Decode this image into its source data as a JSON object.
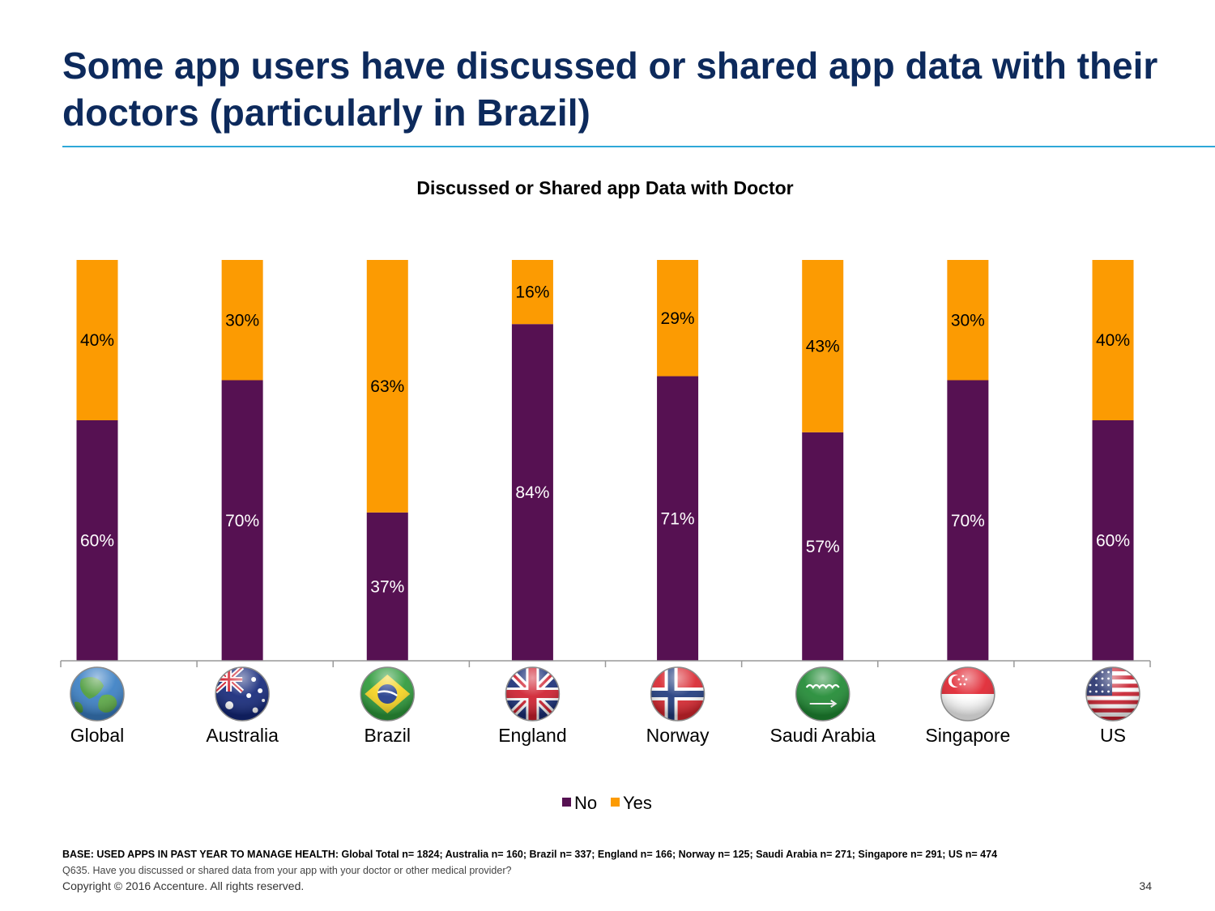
{
  "slide": {
    "title": "Some app users have discussed or shared app data with their doctors (particularly in Brazil)",
    "base_note": "BASE: USED APPS IN PAST YEAR TO MANAGE HEALTH: Global Total n= 1824; Australia n= 160; Brazil n= 337; England n= 166; Norway n= 125; Saudi Arabia  n= 271; Singapore n= 291; US n= 474",
    "question_note": "Q635.  Have you discussed or shared data from your app with your doctor or other medical provider?",
    "copyright": "Copyright © 2016 Accenture. All rights reserved.",
    "page_number": "34"
  },
  "chart_data": {
    "type": "bar",
    "stacked": true,
    "percent_stacked": true,
    "title": "Discussed or Shared app Data with Doctor",
    "categories": [
      "Global",
      "Australia",
      "Brazil",
      "England",
      "Norway",
      "Saudi Arabia",
      "Singapore",
      "US"
    ],
    "category_icons": [
      "globe-icon",
      "australia-flag-icon",
      "brazil-flag-icon",
      "england-flag-icon",
      "norway-flag-icon",
      "saudi-arabia-flag-icon",
      "singapore-flag-icon",
      "us-flag-icon"
    ],
    "series": [
      {
        "name": "No",
        "color": "#561152",
        "label_color": "#ffffff",
        "values": [
          60,
          70,
          37,
          84,
          71,
          57,
          70,
          60
        ],
        "labels": [
          "60%",
          "70%",
          "37%",
          "84%",
          "71%",
          "57%",
          "70%",
          "60%"
        ]
      },
      {
        "name": "Yes",
        "color": "#fc9b02",
        "label_color": "#000000",
        "values": [
          40,
          30,
          63,
          16,
          29,
          43,
          30,
          40
        ],
        "labels": [
          "40%",
          "30%",
          "63%",
          "16%",
          "29%",
          "43%",
          "30%",
          "40%"
        ]
      }
    ],
    "ylim": [
      0,
      100
    ],
    "xlabel": "",
    "ylabel": "",
    "grid": false,
    "legend": "bottom-center"
  }
}
